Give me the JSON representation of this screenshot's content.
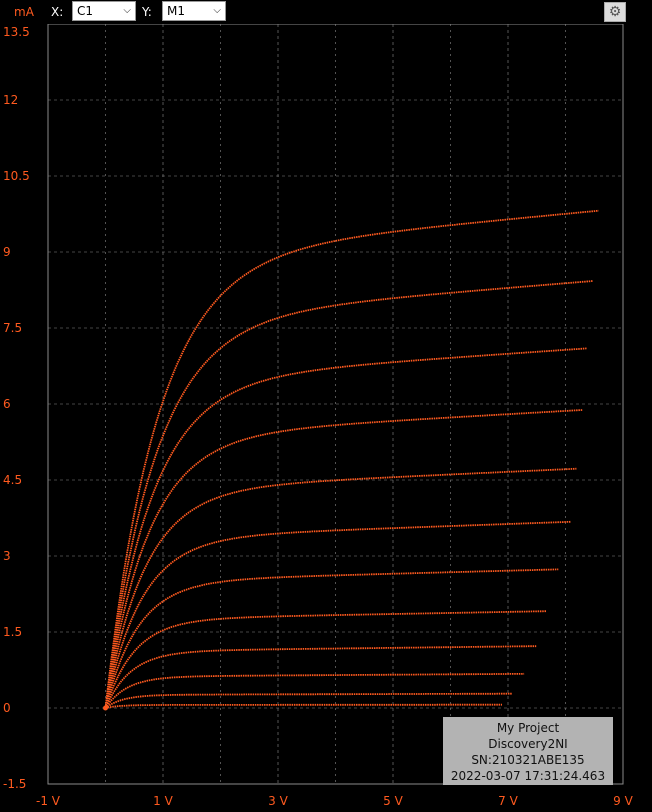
{
  "toolbar": {
    "y_unit": "mA",
    "x_label": "X:",
    "x_channel": "C1",
    "y_label": "Y:",
    "y_channel": "M1"
  },
  "info": {
    "project": "My Project",
    "device": "Discovery2NI",
    "serial": "SN:210321ABE135",
    "timestamp": "2022-03-07 17:31:24.463"
  },
  "colors": {
    "trace": "#ff5a1f",
    "grid": "#8a8a8a",
    "axis_labels": "#ff5a1f",
    "background": "#000000"
  },
  "chart_data": {
    "type": "scatter",
    "title": "",
    "xlabel": "",
    "ylabel": "mA",
    "x_unit": "V",
    "xlim": [
      -1,
      9
    ],
    "ylim": [
      -1.5,
      13.5
    ],
    "x_ticks": [
      "-1 V",
      "1 V",
      "3 V",
      "5 V",
      "7 V",
      "9 V"
    ],
    "y_ticks": [
      "13.5",
      "12",
      "10.5",
      "9",
      "7.5",
      "6",
      "4.5",
      "3",
      "1.5",
      "0",
      "-1.5"
    ],
    "grid": true,
    "series": [
      {
        "isat": 8.9,
        "x_end": 8.6
      },
      {
        "isat": 7.65,
        "x_end": 8.5
      },
      {
        "isat": 6.45,
        "x_end": 8.4
      },
      {
        "isat": 5.35,
        "x_end": 8.3
      },
      {
        "isat": 4.3,
        "x_end": 8.2
      },
      {
        "isat": 3.35,
        "x_end": 8.1
      },
      {
        "isat": 2.5,
        "x_end": 7.9
      },
      {
        "isat": 1.75,
        "x_end": 7.7
      },
      {
        "isat": 1.12,
        "x_end": 7.5
      },
      {
        "isat": 0.62,
        "x_end": 7.3
      },
      {
        "isat": 0.26,
        "x_end": 7.1
      },
      {
        "isat": 0.06,
        "x_end": 6.9
      }
    ]
  }
}
